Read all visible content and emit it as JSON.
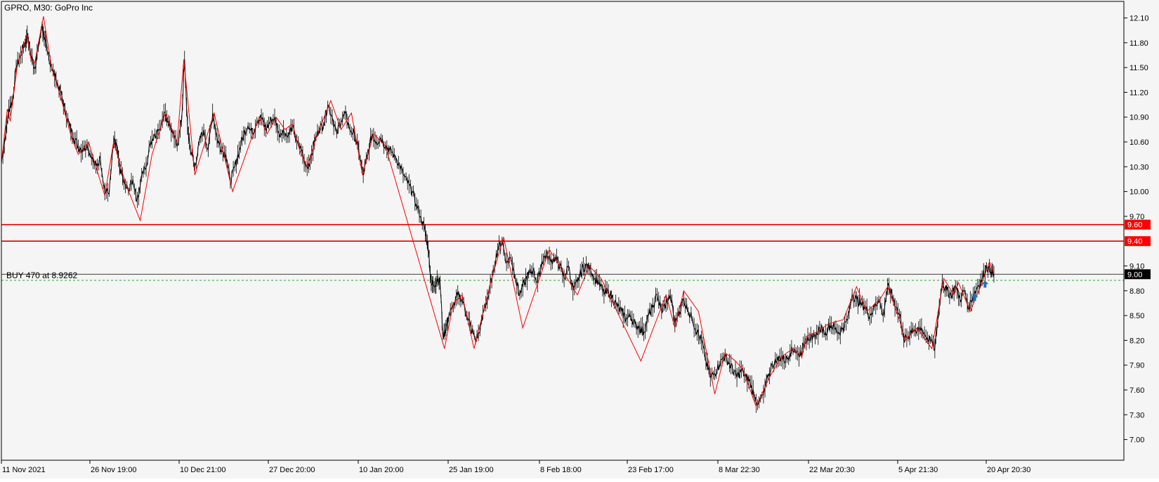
{
  "header": {
    "symbol_label": "GPRO, M30:  GoPro Inc"
  },
  "colors": {
    "background": "#f5f5f5",
    "frame": "#000000",
    "price_line": "#000000",
    "zigzag": "#ff0000",
    "level": "#e00000",
    "level_label_bg": "#ff0000",
    "current_label_bg": "#000000",
    "trade_line": "#2e9e2e",
    "arrow": "#1e6ebf"
  },
  "chart_data": {
    "type": "line",
    "title": "GPRO, M30:  GoPro Inc",
    "xlabel": "",
    "ylabel": "",
    "ylim": [
      6.75,
      12.3
    ],
    "grid": false,
    "y_ticks": [
      "12.10",
      "11.80",
      "11.50",
      "11.20",
      "10.90",
      "10.60",
      "10.30",
      "10.00",
      "9.70",
      "9.10",
      "8.80",
      "8.50",
      "8.20",
      "7.90",
      "7.60",
      "7.30",
      "7.00"
    ],
    "x_ticks": [
      "11 Nov 2021",
      "26 Nov 19:00",
      "10 Dec 21:00",
      "27 Dec 20:00",
      "10 Jan 20:00",
      "25 Jan 19:00",
      "8 Feb 18:00",
      "23 Feb 17:00",
      "8 Mar 22:30",
      "22 Mar 20:30",
      "5 Apr 21:30",
      "20 Apr 20:30"
    ],
    "x_range": [
      0,
      1520
    ],
    "price_series": {
      "name": "GPRO",
      "points": [
        [
          0,
          10.35
        ],
        [
          6,
          10.7
        ],
        [
          10,
          11.0
        ],
        [
          15,
          11.1
        ],
        [
          20,
          11.5
        ],
        [
          26,
          11.65
        ],
        [
          32,
          11.8
        ],
        [
          35,
          11.9
        ],
        [
          40,
          11.65
        ],
        [
          45,
          11.5
        ],
        [
          50,
          11.75
        ],
        [
          55,
          12.0
        ],
        [
          58,
          11.85
        ],
        [
          62,
          11.7
        ],
        [
          68,
          11.5
        ],
        [
          74,
          11.35
        ],
        [
          80,
          11.2
        ],
        [
          86,
          11.0
        ],
        [
          92,
          10.8
        ],
        [
          98,
          10.65
        ],
        [
          104,
          10.55
        ],
        [
          110,
          10.5
        ],
        [
          116,
          10.58
        ],
        [
          122,
          10.4
        ],
        [
          128,
          10.3
        ],
        [
          134,
          10.4
        ],
        [
          140,
          10.0
        ],
        [
          146,
          9.98
        ],
        [
          152,
          10.6
        ],
        [
          156,
          10.55
        ],
        [
          160,
          10.3
        ],
        [
          166,
          10.1
        ],
        [
          172,
          10.0
        ],
        [
          178,
          10.15
        ],
        [
          184,
          9.9
        ],
        [
          190,
          10.2
        ],
        [
          196,
          10.3
        ],
        [
          202,
          10.6
        ],
        [
          208,
          10.7
        ],
        [
          214,
          10.75
        ],
        [
          220,
          10.95
        ],
        [
          226,
          10.85
        ],
        [
          232,
          10.7
        ],
        [
          238,
          10.55
        ],
        [
          244,
          10.85
        ],
        [
          248,
          11.6
        ],
        [
          252,
          10.8
        ],
        [
          256,
          10.5
        ],
        [
          262,
          10.3
        ],
        [
          268,
          10.6
        ],
        [
          274,
          10.75
        ],
        [
          280,
          10.5
        ],
        [
          286,
          10.95
        ],
        [
          292,
          10.65
        ],
        [
          298,
          10.5
        ],
        [
          304,
          10.45
        ],
        [
          310,
          10.1
        ],
        [
          316,
          10.3
        ],
        [
          322,
          10.5
        ],
        [
          328,
          10.7
        ],
        [
          334,
          10.8
        ],
        [
          340,
          10.7
        ],
        [
          346,
          10.85
        ],
        [
          352,
          10.9
        ],
        [
          358,
          10.75
        ],
        [
          364,
          10.85
        ],
        [
          370,
          10.9
        ],
        [
          376,
          10.7
        ],
        [
          382,
          10.75
        ],
        [
          388,
          10.65
        ],
        [
          394,
          10.8
        ],
        [
          400,
          10.6
        ],
        [
          406,
          10.5
        ],
        [
          412,
          10.3
        ],
        [
          418,
          10.35
        ],
        [
          424,
          10.6
        ],
        [
          430,
          10.75
        ],
        [
          436,
          10.8
        ],
        [
          442,
          11.05
        ],
        [
          448,
          10.9
        ],
        [
          454,
          10.7
        ],
        [
          460,
          10.85
        ],
        [
          466,
          10.95
        ],
        [
          472,
          10.75
        ],
        [
          478,
          10.7
        ],
        [
          484,
          10.5
        ],
        [
          490,
          10.2
        ],
        [
          496,
          10.45
        ],
        [
          502,
          10.7
        ],
        [
          508,
          10.6
        ],
        [
          514,
          10.65
        ],
        [
          520,
          10.55
        ],
        [
          526,
          10.5
        ],
        [
          532,
          10.45
        ],
        [
          538,
          10.35
        ],
        [
          544,
          10.2
        ],
        [
          550,
          10.1
        ],
        [
          556,
          10.0
        ],
        [
          562,
          9.85
        ],
        [
          568,
          9.7
        ],
        [
          574,
          9.5
        ],
        [
          578,
          9.3
        ],
        [
          582,
          8.9
        ],
        [
          586,
          8.85
        ],
        [
          590,
          8.95
        ],
        [
          594,
          8.9
        ],
        [
          598,
          8.25
        ],
        [
          602,
          8.35
        ],
        [
          606,
          8.5
        ],
        [
          612,
          8.6
        ],
        [
          618,
          8.75
        ],
        [
          624,
          8.7
        ],
        [
          630,
          8.5
        ],
        [
          636,
          8.35
        ],
        [
          642,
          8.2
        ],
        [
          648,
          8.3
        ],
        [
          654,
          8.6
        ],
        [
          660,
          8.75
        ],
        [
          666,
          9.05
        ],
        [
          672,
          9.3
        ],
        [
          678,
          9.4
        ],
        [
          684,
          9.15
        ],
        [
          690,
          9.2
        ],
        [
          696,
          8.95
        ],
        [
          702,
          8.75
        ],
        [
          708,
          8.9
        ],
        [
          714,
          9.0
        ],
        [
          720,
          9.05
        ],
        [
          726,
          8.9
        ],
        [
          732,
          9.15
        ],
        [
          738,
          9.25
        ],
        [
          744,
          9.15
        ],
        [
          750,
          9.2
        ],
        [
          756,
          9.1
        ],
        [
          762,
          8.95
        ],
        [
          768,
          9.1
        ],
        [
          774,
          8.8
        ],
        [
          780,
          8.9
        ],
        [
          786,
          9.05
        ],
        [
          792,
          9.12
        ],
        [
          798,
          9.05
        ],
        [
          804,
          8.95
        ],
        [
          810,
          8.9
        ],
        [
          816,
          8.75
        ],
        [
          822,
          8.8
        ],
        [
          828,
          8.7
        ],
        [
          834,
          8.6
        ],
        [
          840,
          8.55
        ],
        [
          846,
          8.45
        ],
        [
          852,
          8.5
        ],
        [
          858,
          8.4
        ],
        [
          864,
          8.35
        ],
        [
          870,
          8.3
        ],
        [
          876,
          8.5
        ],
        [
          882,
          8.6
        ],
        [
          888,
          8.75
        ],
        [
          894,
          8.55
        ],
        [
          900,
          8.65
        ],
        [
          906,
          8.75
        ],
        [
          912,
          8.4
        ],
        [
          918,
          8.55
        ],
        [
          924,
          8.7
        ],
        [
          930,
          8.55
        ],
        [
          936,
          8.45
        ],
        [
          942,
          8.3
        ],
        [
          948,
          8.2
        ],
        [
          954,
          7.95
        ],
        [
          960,
          7.75
        ],
        [
          966,
          7.8
        ],
        [
          972,
          7.9
        ],
        [
          978,
          8.0
        ],
        [
          984,
          7.95
        ],
        [
          990,
          7.85
        ],
        [
          996,
          7.75
        ],
        [
          1002,
          7.85
        ],
        [
          1008,
          7.75
        ],
        [
          1014,
          7.7
        ],
        [
          1020,
          7.5
        ],
        [
          1026,
          7.45
        ],
        [
          1032,
          7.55
        ],
        [
          1038,
          7.75
        ],
        [
          1044,
          7.9
        ],
        [
          1050,
          7.95
        ],
        [
          1056,
          8.0
        ],
        [
          1062,
          7.95
        ],
        [
          1068,
          8.05
        ],
        [
          1074,
          8.1
        ],
        [
          1080,
          8.0
        ],
        [
          1086,
          8.15
        ],
        [
          1092,
          8.25
        ],
        [
          1098,
          8.2
        ],
        [
          1104,
          8.3
        ],
        [
          1110,
          8.35
        ],
        [
          1116,
          8.3
        ],
        [
          1122,
          8.4
        ],
        [
          1128,
          8.35
        ],
        [
          1134,
          8.3
        ],
        [
          1140,
          8.35
        ],
        [
          1146,
          8.45
        ],
        [
          1152,
          8.75
        ],
        [
          1158,
          8.7
        ],
        [
          1164,
          8.65
        ],
        [
          1170,
          8.6
        ],
        [
          1176,
          8.5
        ],
        [
          1182,
          8.6
        ],
        [
          1188,
          8.7
        ],
        [
          1194,
          8.5
        ],
        [
          1200,
          8.85
        ],
        [
          1206,
          8.75
        ],
        [
          1212,
          8.6
        ],
        [
          1218,
          8.45
        ],
        [
          1222,
          8.2
        ],
        [
          1228,
          8.25
        ],
        [
          1234,
          8.35
        ],
        [
          1240,
          8.3
        ],
        [
          1246,
          8.35
        ],
        [
          1252,
          8.25
        ],
        [
          1258,
          8.2
        ],
        [
          1264,
          8.1
        ],
        [
          1268,
          8.45
        ],
        [
          1274,
          8.9
        ],
        [
          1280,
          8.8
        ],
        [
          1286,
          8.75
        ],
        [
          1292,
          8.85
        ],
        [
          1298,
          8.7
        ],
        [
          1304,
          8.8
        ],
        [
          1310,
          8.6
        ],
        [
          1316,
          8.75
        ],
        [
          1322,
          8.85
        ],
        [
          1328,
          8.95
        ],
        [
          1334,
          9.1
        ],
        [
          1340,
          9.02
        ],
        [
          1344,
          9.0
        ]
      ]
    },
    "zigzag_series": {
      "name": "ZigZag",
      "points": [
        [
          0,
          10.35
        ],
        [
          8,
          11.0
        ],
        [
          12,
          10.85
        ],
        [
          22,
          11.55
        ],
        [
          35,
          11.9
        ],
        [
          40,
          11.6
        ],
        [
          45,
          11.55
        ],
        [
          57,
          12.12
        ],
        [
          68,
          11.5
        ],
        [
          80,
          11.15
        ],
        [
          95,
          10.65
        ],
        [
          104,
          10.45
        ],
        [
          118,
          10.6
        ],
        [
          128,
          10.3
        ],
        [
          140,
          9.95
        ],
        [
          152,
          10.6
        ],
        [
          168,
          10.1
        ],
        [
          188,
          9.65
        ],
        [
          204,
          10.45
        ],
        [
          222,
          10.95
        ],
        [
          238,
          10.6
        ],
        [
          247,
          11.6
        ],
        [
          262,
          10.2
        ],
        [
          288,
          10.95
        ],
        [
          313,
          10.0
        ],
        [
          349,
          10.9
        ],
        [
          360,
          10.7
        ],
        [
          372,
          10.9
        ],
        [
          384,
          10.75
        ],
        [
          394,
          10.82
        ],
        [
          404,
          10.5
        ],
        [
          414,
          10.3
        ],
        [
          428,
          10.7
        ],
        [
          446,
          11.1
        ],
        [
          460,
          10.75
        ],
        [
          474,
          10.95
        ],
        [
          489,
          10.2
        ],
        [
          504,
          10.7
        ],
        [
          520,
          10.55
        ],
        [
          600,
          8.1
        ],
        [
          612,
          8.65
        ],
        [
          624,
          8.75
        ],
        [
          640,
          8.1
        ],
        [
          664,
          8.95
        ],
        [
          680,
          9.45
        ],
        [
          706,
          8.35
        ],
        [
          742,
          9.3
        ],
        [
          780,
          8.75
        ],
        [
          796,
          9.1
        ],
        [
          812,
          8.95
        ],
        [
          866,
          7.95
        ],
        [
          900,
          8.75
        ],
        [
          912,
          8.35
        ],
        [
          924,
          8.8
        ],
        [
          944,
          8.55
        ],
        [
          966,
          7.55
        ],
        [
          980,
          8.05
        ],
        [
          994,
          7.95
        ],
        [
          1004,
          7.85
        ],
        [
          1022,
          7.4
        ],
        [
          1040,
          7.75
        ],
        [
          1056,
          8.0
        ],
        [
          1072,
          8.1
        ],
        [
          1084,
          8.0
        ],
        [
          1090,
          8.25
        ],
        [
          1104,
          8.3
        ],
        [
          1120,
          8.4
        ],
        [
          1140,
          8.45
        ],
        [
          1158,
          8.85
        ],
        [
          1172,
          8.55
        ],
        [
          1190,
          8.7
        ],
        [
          1200,
          8.85
        ],
        [
          1216,
          8.45
        ],
        [
          1224,
          8.2
        ],
        [
          1240,
          8.35
        ],
        [
          1260,
          8.1
        ],
        [
          1276,
          8.95
        ],
        [
          1290,
          8.75
        ],
        [
          1296,
          8.9
        ],
        [
          1312,
          8.55
        ],
        [
          1326,
          8.85
        ],
        [
          1338,
          9.15
        ],
        [
          1344,
          9.0
        ]
      ]
    },
    "levels": [
      {
        "value": 9.6,
        "label": "9.60"
      },
      {
        "value": 9.4,
        "label": "9.40"
      }
    ],
    "current_price": {
      "value": 9.0,
      "label": "9.00"
    },
    "trade_line": {
      "value": 8.9262,
      "label": "BUY 470 at 8.9262"
    },
    "arrows": [
      {
        "x": 1318,
        "y": 8.72
      },
      {
        "x": 1332,
        "y": 8.88
      }
    ]
  }
}
